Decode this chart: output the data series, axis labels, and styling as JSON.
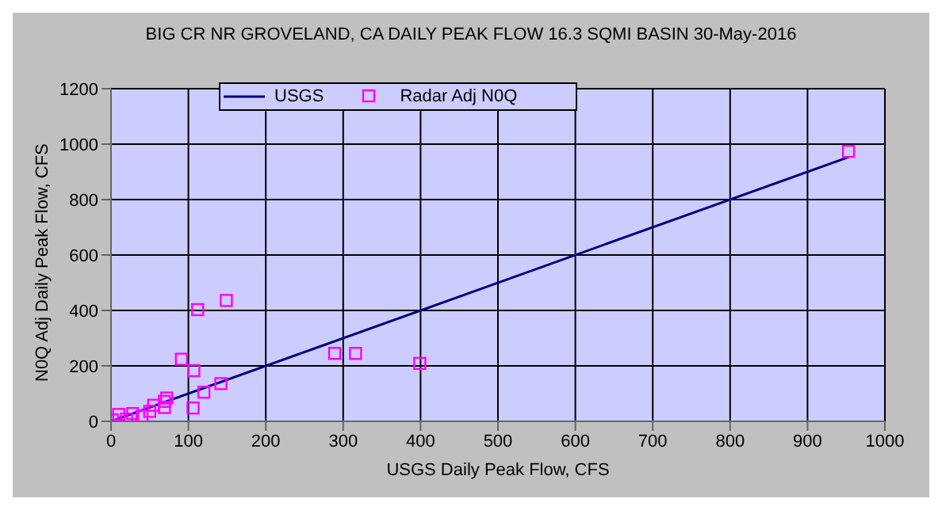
{
  "chart_data": {
    "type": "scatter",
    "title": "BIG CR  NR GROVELAND, CA DAILY PEAK FLOW 16.3 SQMI BASIN 30-May-2016",
    "xlabel": "USGS Daily Peak Flow, CFS",
    "ylabel": "N0Q Adj Daily Peak Flow, CFS",
    "xlim": [
      0,
      1000
    ],
    "xticks": [
      0,
      100,
      200,
      300,
      400,
      500,
      600,
      700,
      800,
      900,
      1000
    ],
    "ylim": [
      0,
      1200
    ],
    "yticks": [
      0,
      200,
      400,
      600,
      800,
      1000,
      1200
    ],
    "grid": true,
    "legend": "top left",
    "series": [
      {
        "name": "USGS",
        "type": "line",
        "color": "#000080",
        "marker": "none",
        "x": [
          0,
          953
        ],
        "values": [
          0,
          953
        ]
      },
      {
        "name": "Radar Adj N0Q",
        "color": "#ff00ff",
        "marker": "square",
        "x": [
          2,
          10,
          20,
          28,
          40,
          50,
          55,
          69,
          69,
          72,
          91,
          106,
          107,
          112,
          120,
          142,
          149,
          289,
          316,
          399,
          953
        ],
        "values": [
          5,
          25,
          8,
          28,
          19,
          36,
          58,
          50,
          72,
          84,
          224,
          48,
          183,
          403,
          105,
          136,
          436,
          245,
          245,
          209,
          974
        ]
      }
    ]
  }
}
